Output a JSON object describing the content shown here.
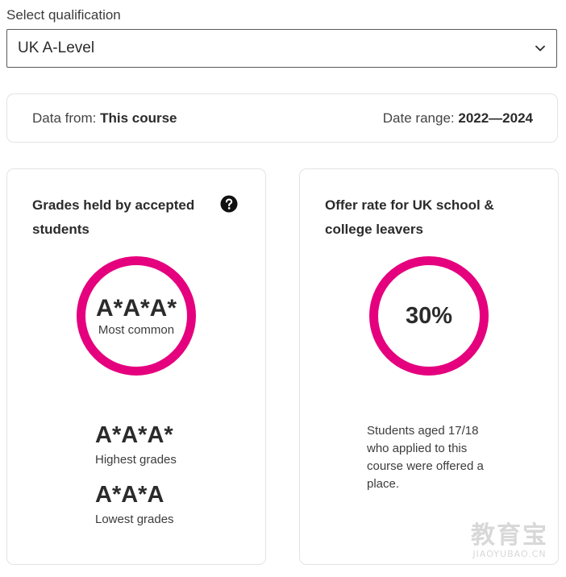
{
  "qualification": {
    "label": "Select qualification",
    "selected": "UK A-Level"
  },
  "info": {
    "data_from_label": "Data from:",
    "data_from_value": "This course",
    "date_range_label": "Date range:",
    "date_range_value": "2022—2024"
  },
  "grades_card": {
    "title": "Grades held by accepted students",
    "most_common_value": "A*A*A*",
    "most_common_label": "Most common",
    "highest_value": "A*A*A*",
    "highest_label": "Highest grades",
    "lowest_value": "A*A*A",
    "lowest_label": "Lowest grades",
    "help_icon": "question-circle-icon"
  },
  "offer_card": {
    "title": "Offer rate for UK school & college leavers",
    "rate": "30%",
    "description": "Students aged 17/18 who applied to this course were offered a place."
  },
  "colors": {
    "accent": "#e5007e",
    "text": "#2b2b2b",
    "border": "#e3e3e3"
  },
  "watermark": {
    "chinese": "教育宝",
    "latin": "JIAOYUBAO.CN"
  }
}
